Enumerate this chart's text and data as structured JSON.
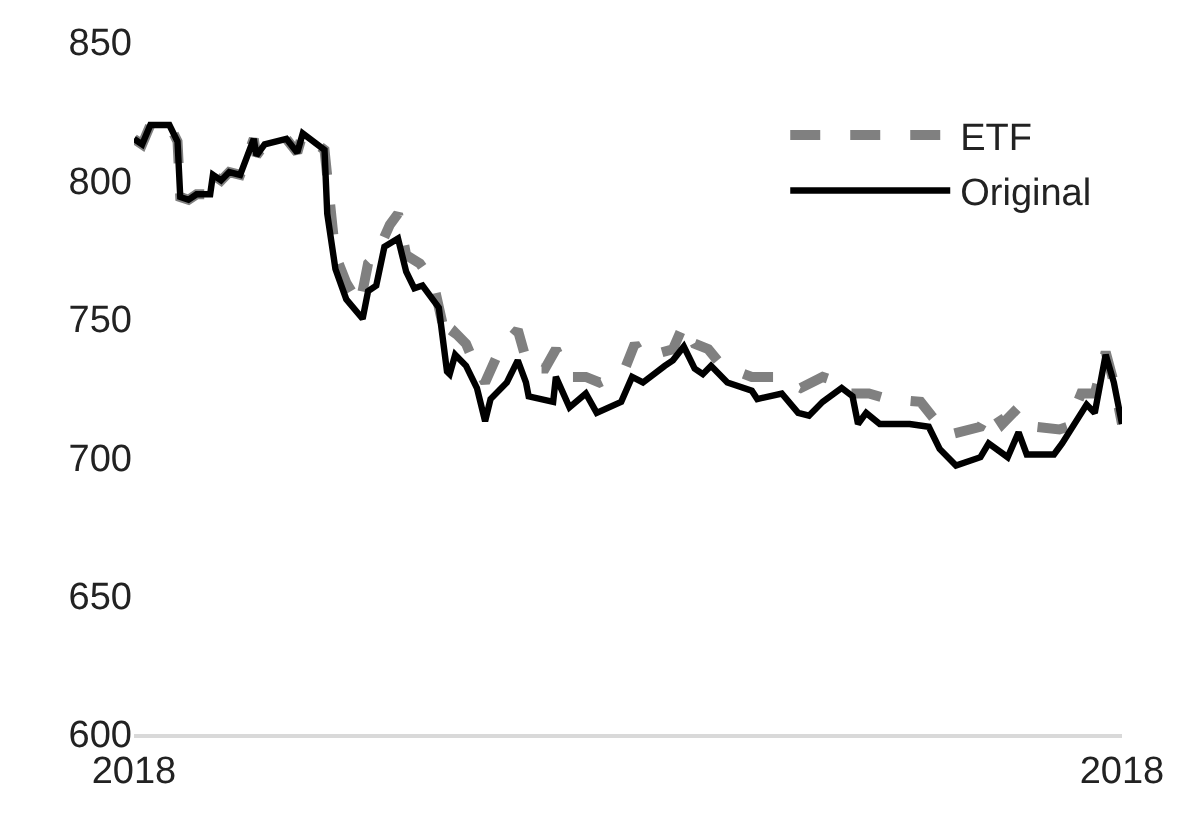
{
  "chart_data": {
    "type": "line",
    "xlim": [
      "2018-01-02",
      "2018-12-31"
    ],
    "xticks": [
      {
        "value": "2018-01-02",
        "label": "2018"
      },
      {
        "value": "2018-12-31",
        "label": "2018"
      }
    ],
    "ylim": [
      600,
      850
    ],
    "yticks": [
      600,
      650,
      700,
      750,
      800,
      850
    ],
    "grid": false,
    "legend": "top right",
    "marker": "none",
    "series": [
      {
        "name": "ETF",
        "color": "#808080",
        "line_style": "dashed",
        "x": [
          "2018-01-02",
          "2018-01-05",
          "2018-01-08",
          "2018-01-15",
          "2018-01-18",
          "2018-01-19",
          "2018-01-22",
          "2018-01-25",
          "2018-01-30",
          "2018-01-31",
          "2018-02-03",
          "2018-02-06",
          "2018-02-10",
          "2018-02-15",
          "2018-02-16",
          "2018-02-19",
          "2018-02-27",
          "2018-03-03",
          "2018-03-05",
          "2018-03-13",
          "2018-03-17",
          "2018-03-21",
          "2018-03-26",
          "2018-03-29",
          "2018-04-01",
          "2018-04-06",
          "2018-04-09",
          "2018-04-12",
          "2018-04-17",
          "2018-04-22",
          "2018-04-27",
          "2018-04-30",
          "2018-05-04",
          "2018-05-07",
          "2018-05-11",
          "2018-05-16",
          "2018-05-23",
          "2018-05-27",
          "2018-06-02",
          "2018-06-06",
          "2018-06-11",
          "2018-06-17",
          "2018-06-22",
          "2018-07-01",
          "2018-07-05",
          "2018-07-08",
          "2018-07-19",
          "2018-07-23",
          "2018-07-27",
          "2018-08-01",
          "2018-08-06",
          "2018-08-17",
          "2018-08-27",
          "2018-09-04",
          "2018-09-12",
          "2018-09-15",
          "2018-09-20",
          "2018-09-29",
          "2018-10-06",
          "2018-10-18",
          "2018-10-22",
          "2018-10-28",
          "2018-11-09",
          "2018-11-13",
          "2018-11-17",
          "2018-11-23",
          "2018-11-29",
          "2018-12-08",
          "2018-12-11",
          "2018-12-16",
          "2018-12-21",
          "2018-12-25",
          "2018-12-28",
          "2018-12-31"
        ],
        "values": [
          815,
          813,
          820,
          820,
          814,
          794,
          793,
          795,
          795,
          802,
          800,
          803,
          802,
          815,
          809,
          813,
          815,
          810,
          817,
          811,
          773,
          763,
          755,
          770,
          773,
          784,
          788,
          773,
          770,
          763,
          741,
          745,
          741,
          734,
          727,
          738,
          746,
          732,
          732,
          739,
          729,
          729,
          727,
          731,
          741,
          736,
          739,
          748,
          741,
          739,
          733,
          729,
          729,
          725,
          729,
          728,
          723,
          723,
          721,
          720,
          715,
          708,
          711,
          718,
          712,
          718,
          711,
          710,
          711,
          723,
          723,
          738,
          727,
          712
        ]
      },
      {
        "name": "Original",
        "color": "#000000",
        "line_style": "solid",
        "x": [
          "2018-01-02",
          "2018-01-05",
          "2018-01-08",
          "2018-01-15",
          "2018-01-18",
          "2018-01-19",
          "2018-01-22",
          "2018-01-25",
          "2018-01-30",
          "2018-01-31",
          "2018-02-03",
          "2018-02-06",
          "2018-02-10",
          "2018-02-15",
          "2018-02-16",
          "2018-02-19",
          "2018-02-27",
          "2018-03-03",
          "2018-03-05",
          "2018-03-13",
          "2018-03-14",
          "2018-03-17",
          "2018-03-21",
          "2018-03-27",
          "2018-03-29",
          "2018-04-01",
          "2018-04-04",
          "2018-04-09",
          "2018-04-12",
          "2018-04-15",
          "2018-04-18",
          "2018-04-24",
          "2018-04-27",
          "2018-04-28",
          "2018-04-30",
          "2018-05-04",
          "2018-05-08",
          "2018-05-11",
          "2018-05-13",
          "2018-05-19",
          "2018-05-23",
          "2018-05-26",
          "2018-05-27",
          "2018-06-05",
          "2018-06-06",
          "2018-06-11",
          "2018-06-17",
          "2018-06-21",
          "2018-06-30",
          "2018-07-04",
          "2018-07-08",
          "2018-07-16",
          "2018-07-19",
          "2018-07-23",
          "2018-07-27",
          "2018-07-30",
          "2018-08-02",
          "2018-08-08",
          "2018-08-17",
          "2018-08-19",
          "2018-08-28",
          "2018-09-03",
          "2018-09-07",
          "2018-09-12",
          "2018-09-19",
          "2018-09-23",
          "2018-09-25",
          "2018-09-28",
          "2018-10-03",
          "2018-10-14",
          "2018-10-21",
          "2018-10-25",
          "2018-10-31",
          "2018-11-09",
          "2018-11-12",
          "2018-11-19",
          "2018-11-23",
          "2018-11-26",
          "2018-12-06",
          "2018-12-09",
          "2018-12-18",
          "2018-12-21",
          "2018-12-25",
          "2018-12-28",
          "2018-12-31"
        ],
        "values": [
          815,
          813,
          820,
          820,
          814,
          794,
          793,
          795,
          795,
          802,
          800,
          803,
          802,
          815,
          809,
          813,
          815,
          810,
          817,
          811,
          788,
          768,
          757,
          750,
          760,
          762,
          776,
          779,
          767,
          761,
          762,
          754,
          731,
          730,
          737,
          733,
          725,
          713,
          721,
          727,
          735,
          727,
          722,
          720,
          729,
          718,
          723,
          716,
          720,
          729,
          727,
          733,
          735,
          740,
          732,
          730,
          733,
          727,
          724,
          721,
          723,
          716,
          715,
          720,
          725,
          722,
          712,
          716,
          712,
          712,
          711,
          703,
          697,
          700,
          705,
          700,
          709,
          701,
          701,
          705,
          719,
          716,
          737,
          727,
          712
        ]
      }
    ]
  }
}
